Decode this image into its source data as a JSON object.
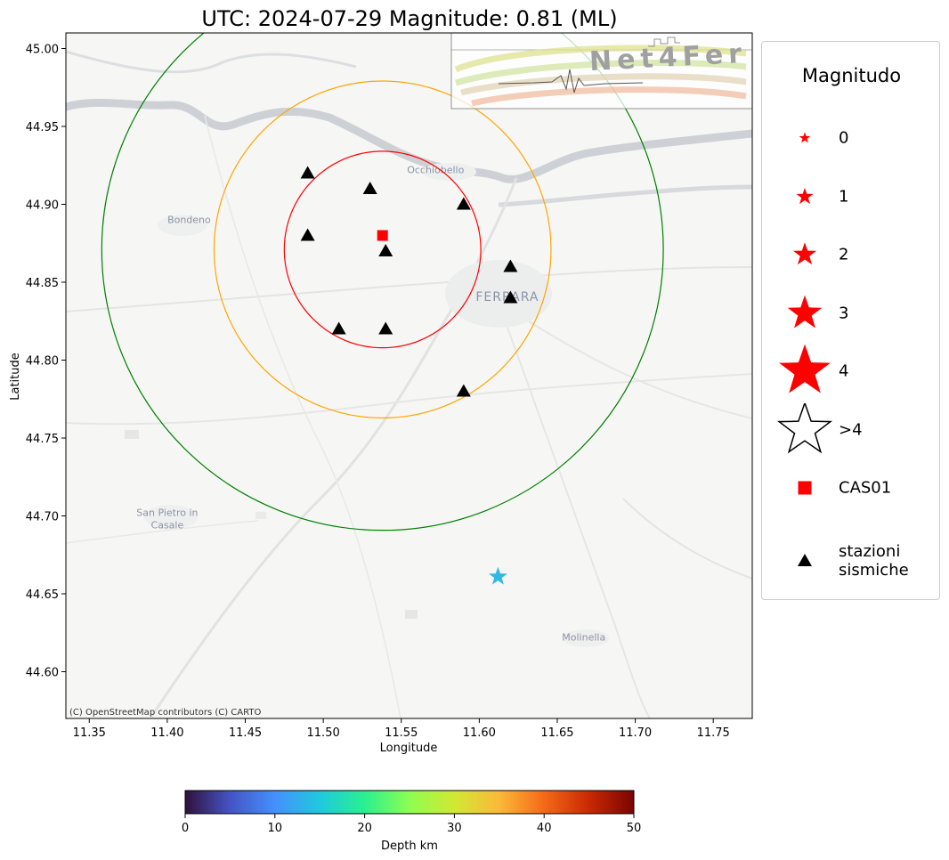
{
  "title": "UTC: 2024-07-29 Magnitude: 0.81 (ML)",
  "map": {
    "xlabel": "Longitude",
    "ylabel": "Latitude",
    "xlim": [
      11.335,
      11.775
    ],
    "ylim": [
      44.57,
      45.01
    ],
    "xticks": [
      "11.35",
      "11.40",
      "11.45",
      "11.50",
      "11.55",
      "11.60",
      "11.65",
      "11.70",
      "11.75"
    ],
    "yticks": [
      "45.00",
      "44.95",
      "44.90",
      "44.85",
      "44.80",
      "44.75",
      "44.70",
      "44.65",
      "44.60"
    ],
    "attribution": "(C) OpenStreetMap contributors (C) CARTO",
    "places": [
      {
        "name": "Occhiobello",
        "lon": 11.572,
        "lat": 44.92
      },
      {
        "name": "Bondeno",
        "lon": 11.414,
        "lat": 44.888
      },
      {
        "name": "FERRARA",
        "lon": 11.618,
        "lat": 44.838
      },
      {
        "name": "San Pietro in",
        "lon": 11.4,
        "lat": 44.7
      },
      {
        "name": "Casale",
        "lon": 11.4,
        "lat": 44.692
      },
      {
        "name": "Molinella",
        "lon": 11.667,
        "lat": 44.62
      }
    ],
    "center": {
      "lon": 11.538,
      "lat": 44.871
    },
    "circles": [
      {
        "r_deg": 0.063,
        "color": "#ff0000"
      },
      {
        "r_deg": 0.108,
        "color": "#ffa500"
      },
      {
        "r_deg": 0.18,
        "color": "#008000"
      }
    ],
    "station_reference": {
      "name": "CAS01",
      "lon": 11.538,
      "lat": 44.88,
      "color": "#ff0000"
    },
    "stations": [
      {
        "lon": 11.49,
        "lat": 44.92
      },
      {
        "lon": 11.53,
        "lat": 44.91
      },
      {
        "lon": 11.59,
        "lat": 44.9
      },
      {
        "lon": 11.49,
        "lat": 44.88
      },
      {
        "lon": 11.54,
        "lat": 44.87
      },
      {
        "lon": 11.62,
        "lat": 44.86
      },
      {
        "lon": 11.62,
        "lat": 44.84
      },
      {
        "lon": 11.51,
        "lat": 44.82
      },
      {
        "lon": 11.54,
        "lat": 44.82
      },
      {
        "lon": 11.59,
        "lat": 44.78
      }
    ],
    "event": {
      "lon": 11.612,
      "lat": 44.661,
      "depth_km": 13,
      "magnitude": 0.81,
      "color": "#2eb8e6"
    }
  },
  "logo": {
    "text": "Net4Fer"
  },
  "colorbar": {
    "label": "Depth km",
    "ticks": [
      "0",
      "10",
      "20",
      "30",
      "40",
      "50"
    ],
    "range": [
      0,
      50
    ],
    "colormap": "turbo"
  },
  "legend": {
    "title": "Magnitudo",
    "items": [
      {
        "label": "0",
        "kind": "star",
        "size": 0.18,
        "color": "#ff0000"
      },
      {
        "label": "1",
        "kind": "star",
        "size": 0.27,
        "color": "#ff0000"
      },
      {
        "label": "2",
        "kind": "star",
        "size": 0.37,
        "color": "#ff0000"
      },
      {
        "label": "3",
        "kind": "star",
        "size": 0.55,
        "color": "#ff0000"
      },
      {
        "label": "4",
        "kind": "star",
        "size": 0.82,
        "color": "#ff0000"
      },
      {
        "label": ">4",
        "kind": "star-outline",
        "size": 0.82,
        "color": "#000000"
      },
      {
        "label": "CAS01",
        "kind": "square",
        "size": 0.2,
        "color": "#ff0000"
      },
      {
        "label": "stazioni\nsismiche",
        "kind": "triangle",
        "size": 0.2,
        "color": "#000000"
      }
    ]
  }
}
